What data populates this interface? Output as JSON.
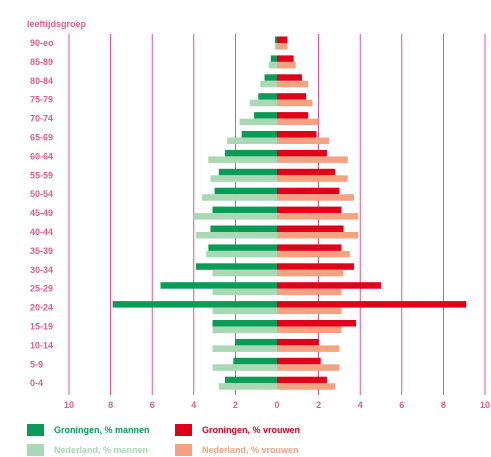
{
  "chart_data": {
    "type": "bar",
    "orientation": "horizontal-population-pyramid",
    "ylabel": "leeftijdsgroep",
    "categories": [
      "90-eo",
      "85-89",
      "80-84",
      "75-79",
      "70-74",
      "65-69",
      "60-64",
      "55-59",
      "50-54",
      "45-49",
      "40-44",
      "35-39",
      "30-34",
      "25-29",
      "20-24",
      "15-19",
      "10-14",
      "5-9",
      "0-4"
    ],
    "xlim": [
      -10,
      10
    ],
    "xticks": [
      -10,
      -8,
      -6,
      -4,
      -2,
      0,
      2,
      4,
      6,
      8,
      10
    ],
    "xtick_labels": [
      "10",
      "8",
      "6",
      "4",
      "2",
      "0",
      "2",
      "4",
      "6",
      "8",
      "10"
    ],
    "grid": true,
    "legend_position": "bottom",
    "series": [
      {
        "name": "Groningen, % mannen",
        "side": "left",
        "color": "#0a9c56",
        "values": [
          0.1,
          0.3,
          0.6,
          0.9,
          1.1,
          1.7,
          2.5,
          2.8,
          3.0,
          3.1,
          3.2,
          3.3,
          3.9,
          5.6,
          7.9,
          3.1,
          2.0,
          2.1,
          2.5
        ]
      },
      {
        "name": "Nederland, % mannen",
        "side": "left",
        "color": "#a8d9b4",
        "values": [
          0.1,
          0.4,
          0.8,
          1.3,
          1.8,
          2.4,
          3.3,
          3.2,
          3.6,
          4.0,
          3.9,
          3.4,
          3.1,
          3.1,
          3.1,
          3.1,
          3.1,
          3.1,
          2.8
        ]
      },
      {
        "name": "Groningen, % vrouwen",
        "side": "right",
        "color": "#e1001a",
        "values": [
          0.5,
          0.8,
          1.2,
          1.4,
          1.5,
          1.9,
          2.4,
          2.8,
          3.0,
          3.1,
          3.2,
          3.1,
          3.7,
          5.0,
          9.1,
          3.8,
          2.0,
          2.1,
          2.4
        ]
      },
      {
        "name": "Nederland, % vrouwen",
        "side": "right",
        "color": "#f3a382",
        "values": [
          0.5,
          0.9,
          1.5,
          1.7,
          2.0,
          2.5,
          3.4,
          3.4,
          3.7,
          3.9,
          3.9,
          3.5,
          3.2,
          3.1,
          3.1,
          3.1,
          3.0,
          3.0,
          2.8
        ]
      }
    ]
  },
  "colors": {
    "axis_text": "#e0608a",
    "grid": "#d0307a"
  }
}
